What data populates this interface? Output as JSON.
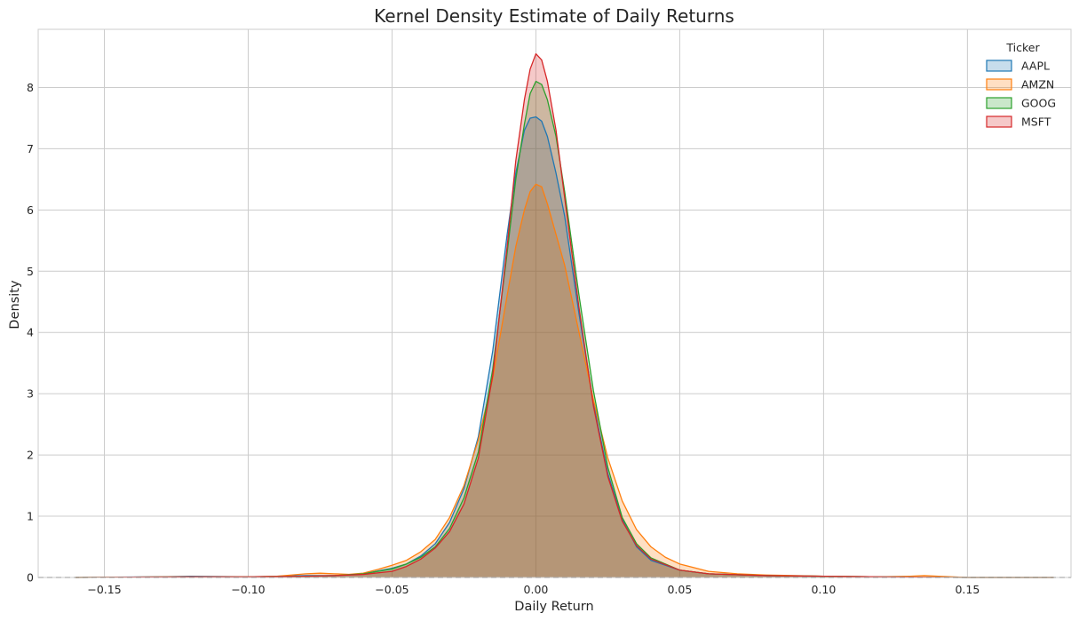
{
  "chart_data": {
    "type": "area",
    "title": "Kernel Density Estimate of Daily Returns",
    "xlabel": "Daily Return",
    "ylabel": "Density",
    "xlim": [
      -0.173,
      0.186
    ],
    "ylim": [
      0,
      8.95
    ],
    "x_ticks": [
      -0.15,
      -0.1,
      -0.05,
      0.0,
      0.05,
      0.1,
      0.15
    ],
    "x_tick_labels": [
      "−0.15",
      "−0.10",
      "−0.05",
      "0.00",
      "0.05",
      "0.10",
      "0.15"
    ],
    "y_ticks": [
      0,
      1,
      2,
      3,
      4,
      5,
      6,
      7,
      8
    ],
    "y_tick_labels": [
      "0",
      "1",
      "2",
      "3",
      "4",
      "5",
      "6",
      "7",
      "8"
    ],
    "grid": true,
    "reference_line": {
      "y": 0,
      "style": "dashed",
      "color": "#333333"
    },
    "legend": {
      "title": "Ticker",
      "placement": "top-right"
    },
    "series": [
      {
        "name": "AAPL",
        "color": "#1f77b4",
        "x": [
          -0.16,
          -0.13,
          -0.12,
          -0.1,
          -0.09,
          -0.08,
          -0.07,
          -0.06,
          -0.05,
          -0.045,
          -0.04,
          -0.035,
          -0.03,
          -0.025,
          -0.02,
          -0.015,
          -0.01,
          -0.007,
          -0.004,
          -0.002,
          0.0,
          0.002,
          0.004,
          0.007,
          0.01,
          0.015,
          0.02,
          0.025,
          0.03,
          0.035,
          0.04,
          0.05,
          0.06,
          0.08,
          0.1,
          0.12,
          0.15,
          0.18
        ],
        "y": [
          0.0,
          0.01,
          0.02,
          0.01,
          0.02,
          0.03,
          0.03,
          0.06,
          0.15,
          0.22,
          0.35,
          0.55,
          0.9,
          1.45,
          2.3,
          3.7,
          5.6,
          6.6,
          7.3,
          7.5,
          7.52,
          7.45,
          7.2,
          6.6,
          5.9,
          4.3,
          2.85,
          1.7,
          0.95,
          0.5,
          0.28,
          0.12,
          0.06,
          0.03,
          0.02,
          0.01,
          0.0,
          0.0
        ]
      },
      {
        "name": "AMZN",
        "color": "#ff7f0e",
        "x": [
          -0.16,
          -0.12,
          -0.1,
          -0.09,
          -0.085,
          -0.08,
          -0.075,
          -0.07,
          -0.065,
          -0.06,
          -0.055,
          -0.05,
          -0.045,
          -0.04,
          -0.035,
          -0.03,
          -0.025,
          -0.02,
          -0.015,
          -0.01,
          -0.007,
          -0.004,
          -0.002,
          0.0,
          0.002,
          0.004,
          0.007,
          0.01,
          0.015,
          0.02,
          0.025,
          0.03,
          0.035,
          0.04,
          0.045,
          0.05,
          0.06,
          0.07,
          0.08,
          0.1,
          0.12,
          0.13,
          0.135,
          0.14,
          0.15,
          0.18
        ],
        "y": [
          0.0,
          0.01,
          0.01,
          0.02,
          0.04,
          0.06,
          0.07,
          0.06,
          0.05,
          0.07,
          0.13,
          0.2,
          0.28,
          0.42,
          0.62,
          0.98,
          1.5,
          2.25,
          3.25,
          4.6,
          5.4,
          6.0,
          6.3,
          6.42,
          6.38,
          6.1,
          5.6,
          5.1,
          4.0,
          2.9,
          1.95,
          1.25,
          0.78,
          0.5,
          0.33,
          0.22,
          0.1,
          0.06,
          0.04,
          0.02,
          0.01,
          0.02,
          0.03,
          0.02,
          0.0,
          0.0
        ]
      },
      {
        "name": "GOOG",
        "color": "#2ca02c",
        "x": [
          -0.16,
          -0.12,
          -0.1,
          -0.08,
          -0.07,
          -0.06,
          -0.05,
          -0.045,
          -0.04,
          -0.035,
          -0.03,
          -0.025,
          -0.02,
          -0.015,
          -0.01,
          -0.007,
          -0.004,
          -0.002,
          0.0,
          0.002,
          0.004,
          0.007,
          0.01,
          0.015,
          0.02,
          0.025,
          0.03,
          0.035,
          0.04,
          0.05,
          0.06,
          0.08,
          0.1,
          0.12,
          0.15,
          0.18
        ],
        "y": [
          0.0,
          0.01,
          0.01,
          0.02,
          0.03,
          0.06,
          0.14,
          0.22,
          0.33,
          0.5,
          0.8,
          1.3,
          2.05,
          3.4,
          5.3,
          6.5,
          7.4,
          7.9,
          8.1,
          8.05,
          7.8,
          7.2,
          6.3,
          4.6,
          3.05,
          1.8,
          0.98,
          0.55,
          0.32,
          0.12,
          0.06,
          0.03,
          0.02,
          0.01,
          0.0,
          0.0
        ]
      },
      {
        "name": "MSFT",
        "color": "#d62728",
        "x": [
          -0.16,
          -0.12,
          -0.1,
          -0.08,
          -0.07,
          -0.06,
          -0.05,
          -0.045,
          -0.04,
          -0.035,
          -0.03,
          -0.025,
          -0.02,
          -0.015,
          -0.01,
          -0.007,
          -0.004,
          -0.002,
          0.0,
          0.002,
          0.004,
          0.007,
          0.01,
          0.015,
          0.02,
          0.025,
          0.03,
          0.035,
          0.04,
          0.05,
          0.06,
          0.08,
          0.1,
          0.12,
          0.15,
          0.18
        ],
        "y": [
          0.0,
          0.01,
          0.01,
          0.02,
          0.03,
          0.05,
          0.1,
          0.18,
          0.3,
          0.48,
          0.75,
          1.2,
          1.95,
          3.3,
          5.4,
          6.8,
          7.8,
          8.3,
          8.55,
          8.45,
          8.1,
          7.3,
          6.2,
          4.4,
          2.8,
          1.65,
          0.92,
          0.52,
          0.3,
          0.12,
          0.06,
          0.03,
          0.02,
          0.01,
          0.0,
          0.0
        ]
      }
    ]
  }
}
